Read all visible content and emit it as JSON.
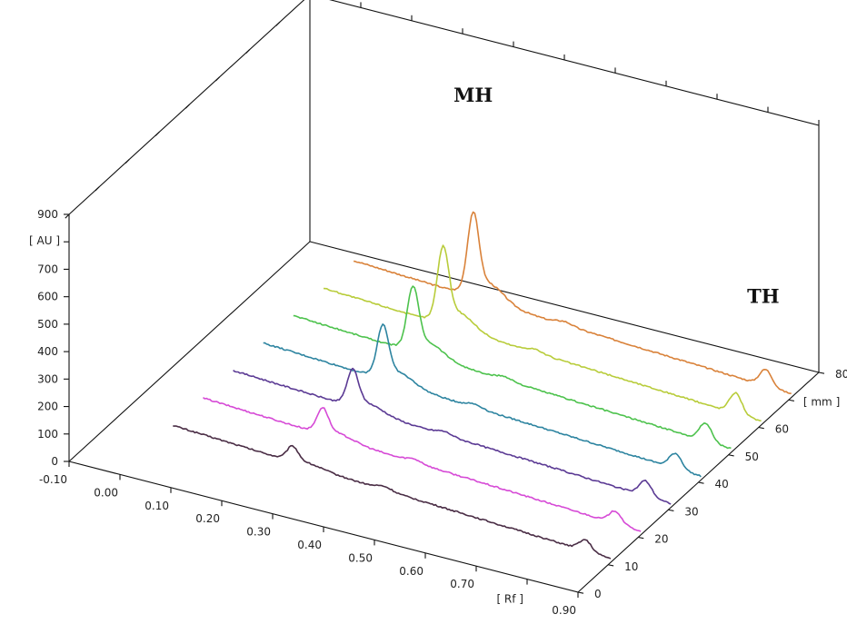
{
  "chart_data": {
    "type": "line",
    "style": "3d-waterfall",
    "x_axis": {
      "label": "[ Rf ]",
      "ticks": [
        "-0.10",
        "0.00",
        "0.10",
        "0.20",
        "0.30",
        "0.40",
        "0.50",
        "0.60",
        "0.70",
        "0.90"
      ],
      "range": [
        -0.1,
        0.9
      ]
    },
    "y_axis": {
      "label": "[ AU ]",
      "ticks": [
        "0",
        "100",
        "200",
        "300",
        "400",
        "500",
        "600",
        "700",
        "900"
      ],
      "range": [
        0,
        900
      ]
    },
    "z_axis": {
      "label": "[ mm ]",
      "ticks": [
        "0",
        "10",
        "20",
        "30",
        "40",
        "50",
        "60",
        "80"
      ],
      "range": [
        0,
        80
      ]
    },
    "annotations": [
      {
        "text": "MH",
        "rf": 0.28,
        "au": 790,
        "mm": 70
      },
      {
        "text": "TH",
        "rf": 0.85,
        "au": 330,
        "mm": 70
      }
    ],
    "peaks": {
      "MH": {
        "rf": 0.28,
        "width": 0.011
      },
      "TH": {
        "rf": 0.855,
        "width": 0.012
      }
    },
    "series": [
      {
        "mm": 10,
        "color": "#4a2d45",
        "baseline_start": 100,
        "baseline_end": 25,
        "mh_height": 50,
        "th_height": 40
      },
      {
        "mm": 20,
        "color": "#d64ad6",
        "baseline_start": 100,
        "baseline_end": 25,
        "mh_height": 85,
        "th_height": 45
      },
      {
        "mm": 30,
        "color": "#5b3a94",
        "baseline_start": 100,
        "baseline_end": 25,
        "mh_height": 120,
        "th_height": 55
      },
      {
        "mm": 40,
        "color": "#2d84a0",
        "baseline_start": 100,
        "baseline_end": 25,
        "mh_height": 175,
        "th_height": 55
      },
      {
        "mm": 50,
        "color": "#4dc24d",
        "baseline_start": 100,
        "baseline_end": 25,
        "mh_height": 210,
        "th_height": 65
      },
      {
        "mm": 60,
        "color": "#b8cc3a",
        "baseline_start": 100,
        "baseline_end": 25,
        "mh_height": 250,
        "th_height": 75
      },
      {
        "mm": 70,
        "color": "#d9823a",
        "baseline_start": 100,
        "baseline_end": 25,
        "mh_height": 270,
        "th_height": 60
      }
    ],
    "grid": false,
    "legend": "none"
  }
}
